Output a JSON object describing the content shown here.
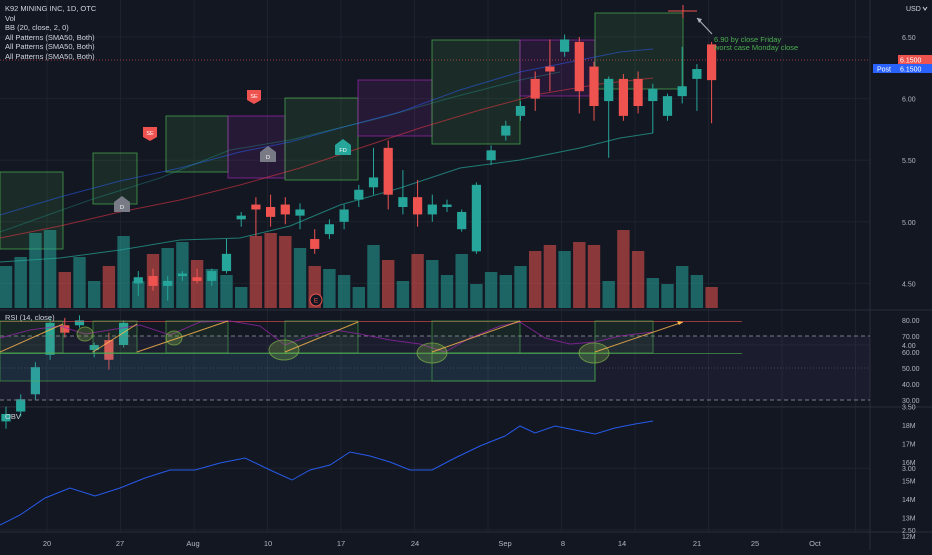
{
  "legend": {
    "symbol_line": "K92 MINING INC, 1D, OTC",
    "vol": "Vol",
    "bb": "BB (20, close, 2, 0)",
    "pattern1": "All Patterns (SMA50, Both)",
    "pattern2": "All Patterns (SMA50, Both)",
    "pattern3": "All Patterns (SMA50, Both)"
  },
  "currency": "USD",
  "price_axis": [
    "6.50",
    "6.00",
    "5.50",
    "5.00",
    "4.50",
    "4.00",
    "3.50",
    "3.00",
    "2.50"
  ],
  "last_price": "6.1500",
  "post_label": "Post",
  "post_price": "6.1500",
  "annotation": {
    "line1": "6.90 by close Friday",
    "line2": "worst case Monday close"
  },
  "rsi": {
    "label": "RSI (14, close)",
    "axis": [
      "80.00",
      "70.00",
      "60.00",
      "50.00",
      "40.00",
      "30.00"
    ]
  },
  "obv": {
    "label": "OBV",
    "axis": [
      "18M",
      "17M",
      "16M",
      "15M",
      "14M",
      "13M",
      "12M"
    ]
  },
  "x_axis": [
    "20",
    "27",
    "Aug",
    "10",
    "17",
    "24",
    "Sep",
    "8",
    "14",
    "21",
    "25",
    "Oct"
  ],
  "markers": {
    "e": "E",
    "fd": "FD",
    "d1": "D",
    "d2": "D",
    "se1": "SE",
    "se2": "SE"
  },
  "colors": {
    "up": "#26a69a",
    "down": "#ef5350",
    "bg": "#131722",
    "box_green": "#4caf50",
    "box_purple": "#9c27b0"
  },
  "chart_data": {
    "type": "candlestick",
    "title": "K92 MINING INC, 1D, OTC",
    "ylabel": "USD",
    "ylim": [
      2.2,
      6.9
    ],
    "candles": [
      {
        "o": 3.38,
        "h": 3.5,
        "l": 3.32,
        "c": 3.44
      },
      {
        "o": 3.46,
        "h": 3.6,
        "l": 3.42,
        "c": 3.56
      },
      {
        "o": 3.6,
        "h": 3.86,
        "l": 3.55,
        "c": 3.82
      },
      {
        "o": 3.92,
        "h": 4.22,
        "l": 3.88,
        "c": 4.18
      },
      {
        "o": 4.16,
        "h": 4.22,
        "l": 4.06,
        "c": 4.1
      },
      {
        "o": 4.16,
        "h": 4.24,
        "l": 4.14,
        "c": 4.2
      },
      {
        "o": 3.96,
        "h": 4.02,
        "l": 3.9,
        "c": 4.0
      },
      {
        "o": 4.04,
        "h": 4.1,
        "l": 3.8,
        "c": 3.88
      },
      {
        "o": 4.0,
        "h": 4.2,
        "l": 3.98,
        "c": 4.18
      },
      {
        "o": 4.5,
        "h": 4.6,
        "l": 4.4,
        "c": 4.55
      },
      {
        "o": 4.56,
        "h": 4.62,
        "l": 4.44,
        "c": 4.48
      },
      {
        "o": 4.48,
        "h": 4.56,
        "l": 4.36,
        "c": 4.52
      },
      {
        "o": 4.56,
        "h": 4.6,
        "l": 4.52,
        "c": 4.58
      },
      {
        "o": 4.55,
        "h": 4.62,
        "l": 4.5,
        "c": 4.52
      },
      {
        "o": 4.52,
        "h": 4.62,
        "l": 4.48,
        "c": 4.6
      },
      {
        "o": 4.6,
        "h": 4.86,
        "l": 4.58,
        "c": 4.74
      },
      {
        "o": 5.02,
        "h": 5.08,
        "l": 4.96,
        "c": 5.05
      },
      {
        "o": 5.14,
        "h": 5.2,
        "l": 4.88,
        "c": 5.1
      },
      {
        "o": 5.12,
        "h": 5.22,
        "l": 4.96,
        "c": 5.04
      },
      {
        "o": 5.14,
        "h": 5.2,
        "l": 4.98,
        "c": 5.06
      },
      {
        "o": 5.05,
        "h": 5.15,
        "l": 4.94,
        "c": 5.1
      },
      {
        "o": 4.86,
        "h": 4.94,
        "l": 4.74,
        "c": 4.78
      },
      {
        "o": 4.9,
        "h": 5.02,
        "l": 4.86,
        "c": 4.98
      },
      {
        "o": 5.0,
        "h": 5.14,
        "l": 4.94,
        "c": 5.1
      },
      {
        "o": 5.18,
        "h": 5.3,
        "l": 5.12,
        "c": 5.26
      },
      {
        "o": 5.28,
        "h": 5.6,
        "l": 5.22,
        "c": 5.36
      },
      {
        "o": 5.6,
        "h": 5.66,
        "l": 5.1,
        "c": 5.22
      },
      {
        "o": 5.12,
        "h": 5.42,
        "l": 5.06,
        "c": 5.2
      },
      {
        "o": 5.2,
        "h": 5.34,
        "l": 4.96,
        "c": 5.06
      },
      {
        "o": 5.06,
        "h": 5.22,
        "l": 5.0,
        "c": 5.14
      },
      {
        "o": 5.12,
        "h": 5.18,
        "l": 5.08,
        "c": 5.14
      },
      {
        "o": 4.94,
        "h": 5.1,
        "l": 4.92,
        "c": 5.08
      },
      {
        "o": 4.76,
        "h": 5.32,
        "l": 4.74,
        "c": 5.3
      },
      {
        "o": 5.5,
        "h": 5.62,
        "l": 5.46,
        "c": 5.58
      },
      {
        "o": 5.7,
        "h": 5.82,
        "l": 5.66,
        "c": 5.78
      },
      {
        "o": 5.86,
        "h": 5.98,
        "l": 5.82,
        "c": 5.94
      },
      {
        "o": 6.16,
        "h": 6.22,
        "l": 5.9,
        "c": 6.0
      },
      {
        "o": 6.26,
        "h": 6.48,
        "l": 6.06,
        "c": 6.22
      },
      {
        "o": 6.38,
        "h": 6.52,
        "l": 6.34,
        "c": 6.48
      },
      {
        "o": 6.46,
        "h": 6.5,
        "l": 5.88,
        "c": 6.06
      },
      {
        "o": 6.26,
        "h": 6.3,
        "l": 5.82,
        "c": 5.94
      },
      {
        "o": 5.98,
        "h": 6.18,
        "l": 5.52,
        "c": 6.16
      },
      {
        "o": 6.16,
        "h": 6.2,
        "l": 5.82,
        "c": 5.86
      },
      {
        "o": 6.16,
        "h": 6.22,
        "l": 5.88,
        "c": 5.94
      },
      {
        "o": 5.98,
        "h": 6.12,
        "l": 5.72,
        "c": 6.08
      },
      {
        "o": 5.86,
        "h": 6.04,
        "l": 5.82,
        "c": 6.02
      },
      {
        "o": 6.02,
        "h": 6.42,
        "l": 5.96,
        "c": 6.1
      },
      {
        "o": 6.16,
        "h": 6.28,
        "l": 5.9,
        "c": 6.24
      },
      {
        "o": 6.44,
        "h": 6.46,
        "l": 5.8,
        "c": 6.15
      }
    ],
    "volume": [
      14,
      17,
      25,
      26,
      12,
      17,
      9,
      14,
      24,
      9,
      18,
      20,
      22,
      16,
      13,
      11,
      7,
      24,
      25,
      24,
      20,
      14,
      13,
      11,
      7,
      21,
      16,
      9,
      18,
      16,
      11,
      18,
      8,
      12,
      11,
      14,
      19,
      21,
      19,
      22,
      21,
      9,
      26,
      19,
      10,
      8,
      14,
      11,
      7
    ]
  }
}
